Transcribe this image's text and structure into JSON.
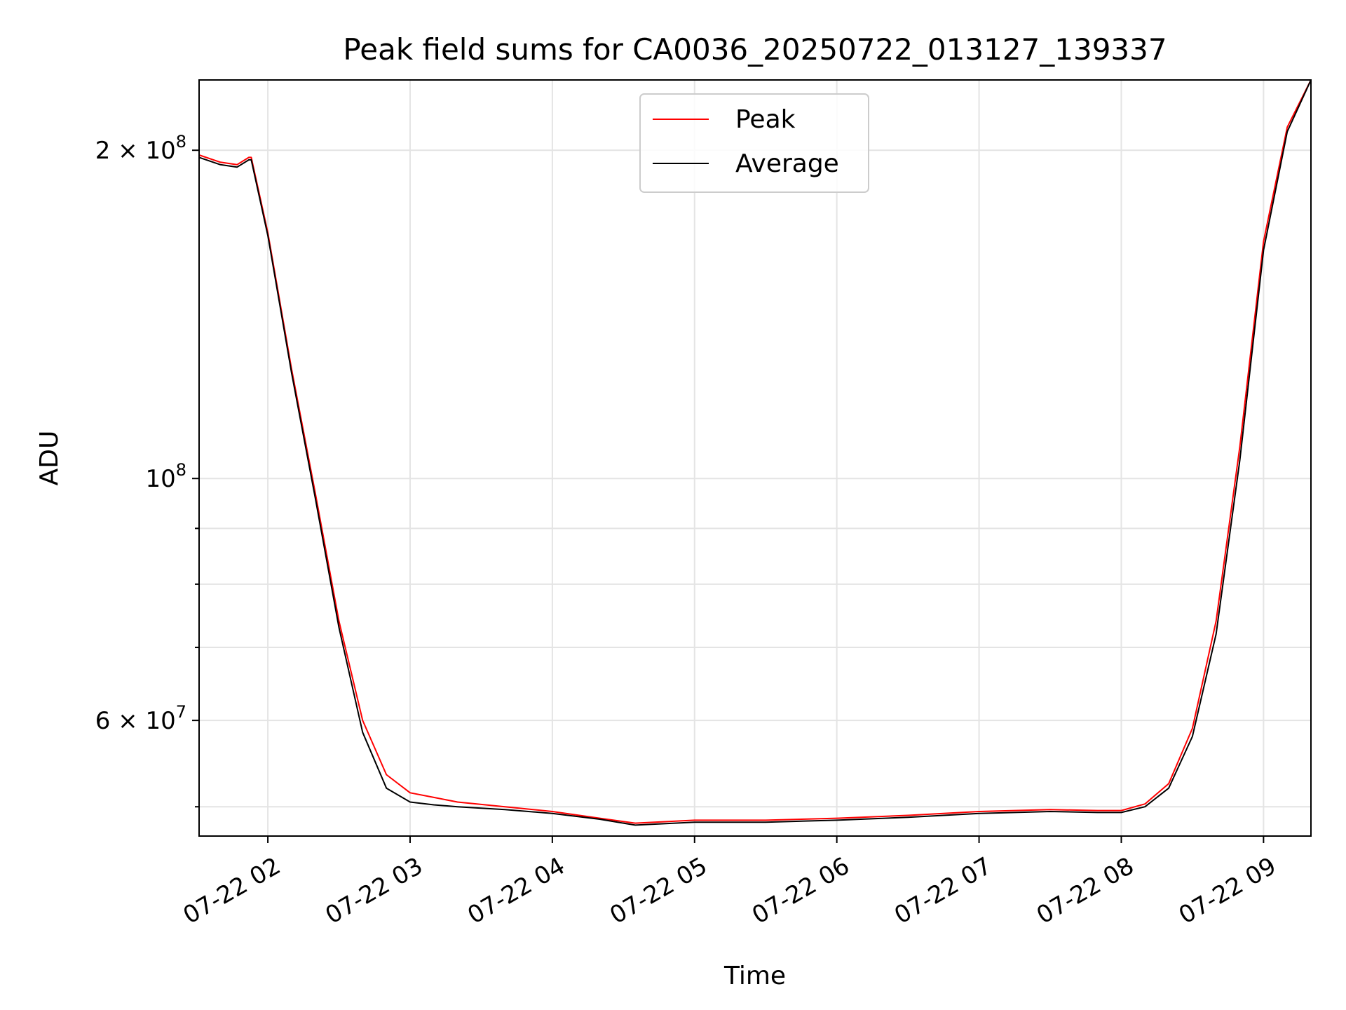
{
  "chart_data": {
    "type": "line",
    "title": "Peak field sums for CA0036_20250722_013127_139337",
    "xlabel": "Time",
    "ylabel": "ADU",
    "yscale": "log",
    "xlim": [
      "07-22 01:31",
      "07-22 09:20"
    ],
    "ylim": [
      47000000,
      232000000
    ],
    "grid": true,
    "legend_position": "top-center",
    "x_ticks": [
      {
        "value": "07-22 02:00",
        "label": "07-22 02"
      },
      {
        "value": "07-22 03:00",
        "label": "07-22 03"
      },
      {
        "value": "07-22 04:00",
        "label": "07-22 04"
      },
      {
        "value": "07-22 05:00",
        "label": "07-22 05"
      },
      {
        "value": "07-22 06:00",
        "label": "07-22 06"
      },
      {
        "value": "07-22 07:00",
        "label": "07-22 07"
      },
      {
        "value": "07-22 08:00",
        "label": "07-22 08"
      },
      {
        "value": "07-22 09:00",
        "label": "07-22 09"
      }
    ],
    "y_ticks": [
      {
        "value": 200000000,
        "base": "2 × 10",
        "exp": "8"
      },
      {
        "value": 100000000,
        "base": "10",
        "exp": "8"
      },
      {
        "value": 60000000,
        "base": "6 × 10",
        "exp": "7"
      }
    ],
    "y_minor_ticks": [
      50000000,
      70000000,
      80000000,
      90000000
    ],
    "series": [
      {
        "name": "Peak",
        "color": "#ff0000",
        "x": [
          "07-22 01:31",
          "07-22 01:40",
          "07-22 01:47",
          "07-22 01:52",
          "07-22 01:53",
          "07-22 02:00",
          "07-22 02:10",
          "07-22 02:20",
          "07-22 02:30",
          "07-22 02:40",
          "07-22 02:50",
          "07-22 03:00",
          "07-22 03:10",
          "07-22 03:20",
          "07-22 03:40",
          "07-22 04:00",
          "07-22 04:20",
          "07-22 04:35",
          "07-22 05:00",
          "07-22 05:30",
          "07-22 06:00",
          "07-22 06:30",
          "07-22 07:00",
          "07-22 07:30",
          "07-22 07:50",
          "07-22 08:00",
          "07-22 08:10",
          "07-22 08:20",
          "07-22 08:30",
          "07-22 08:40",
          "07-22 08:50",
          "07-22 09:00",
          "07-22 09:10",
          "07-22 09:20"
        ],
        "y": [
          198000000,
          195000000,
          194000000,
          197000000,
          197000000,
          168000000,
          126000000,
          97000000,
          74000000,
          60000000,
          53500000,
          51500000,
          51000000,
          50500000,
          50000000,
          49500000,
          48800000,
          48300000,
          48600000,
          48600000,
          48800000,
          49100000,
          49500000,
          49700000,
          49600000,
          49600000,
          50300000,
          52500000,
          59000000,
          74000000,
          107000000,
          165000000,
          210000000,
          232000000
        ]
      },
      {
        "name": "Average",
        "color": "#000000",
        "x": [
          "07-22 01:31",
          "07-22 01:40",
          "07-22 01:47",
          "07-22 01:52",
          "07-22 01:53",
          "07-22 02:00",
          "07-22 02:10",
          "07-22 02:20",
          "07-22 02:30",
          "07-22 02:40",
          "07-22 02:50",
          "07-22 03:00",
          "07-22 03:10",
          "07-22 03:20",
          "07-22 03:40",
          "07-22 04:00",
          "07-22 04:20",
          "07-22 04:35",
          "07-22 05:00",
          "07-22 05:30",
          "07-22 06:00",
          "07-22 06:30",
          "07-22 07:00",
          "07-22 07:30",
          "07-22 07:50",
          "07-22 08:00",
          "07-22 08:10",
          "07-22 08:20",
          "07-22 08:30",
          "07-22 08:40",
          "07-22 08:50",
          "07-22 09:00",
          "07-22 09:10",
          "07-22 09:20"
        ],
        "y": [
          197000000,
          194000000,
          193000000,
          196000000,
          196000000,
          167000000,
          125000000,
          96000000,
          73000000,
          58500000,
          52000000,
          50500000,
          50200000,
          50000000,
          49700000,
          49300000,
          48700000,
          48100000,
          48400000,
          48400000,
          48600000,
          48900000,
          49300000,
          49500000,
          49400000,
          49400000,
          50000000,
          52000000,
          58000000,
          72000000,
          104000000,
          162000000,
          208000000,
          232000000
        ]
      }
    ]
  }
}
